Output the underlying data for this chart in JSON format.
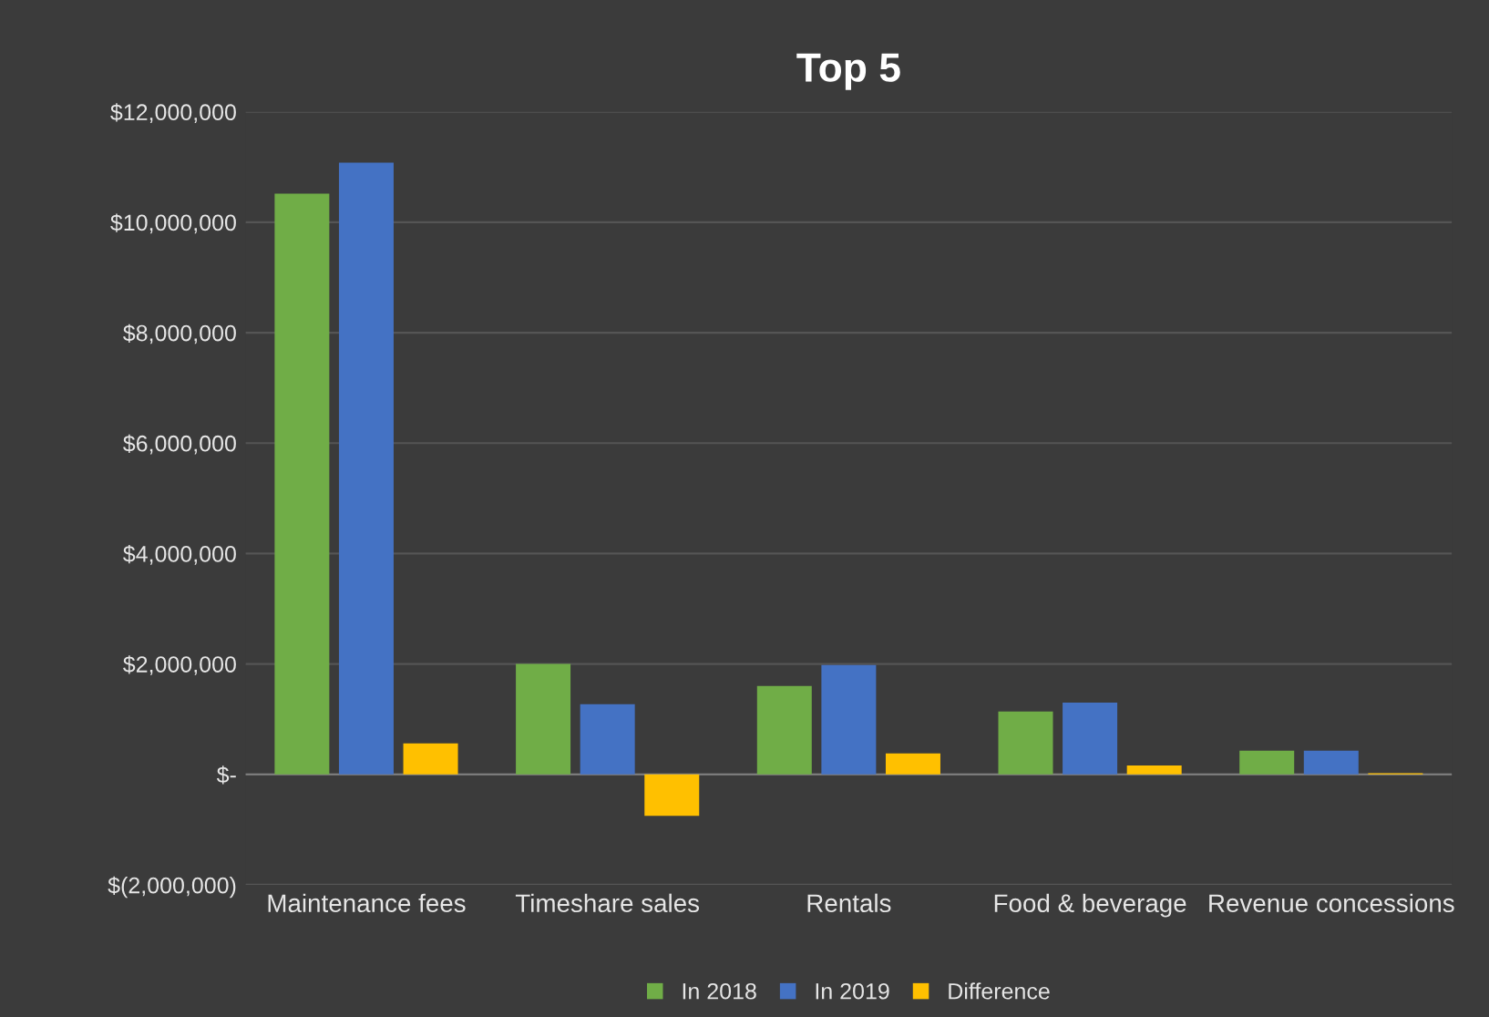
{
  "chart_data": {
    "type": "bar",
    "title": "Top 5",
    "categories": [
      "Maintenance fees",
      "Timeshare sales",
      "Rentals",
      "Food & beverage",
      "Revenue concessions"
    ],
    "series": [
      {
        "name": "In 2018",
        "color": "#70ad47",
        "values": [
          10520000,
          2000000,
          1600000,
          1140000,
          430000
        ]
      },
      {
        "name": "In 2019",
        "color": "#4472c4",
        "values": [
          11080000,
          1270000,
          1980000,
          1300000,
          430000
        ]
      },
      {
        "name": "Difference",
        "color": "#ffc000",
        "values": [
          560000,
          -750000,
          380000,
          160000,
          20000
        ]
      }
    ],
    "ylim": [
      -2000000,
      12000000
    ],
    "yticks": [
      {
        "value": -2000000,
        "label": "$(2,000,000)"
      },
      {
        "value": 0,
        "label": "$-"
      },
      {
        "value": 2000000,
        "label": "$2,000,000"
      },
      {
        "value": 4000000,
        "label": "$4,000,000"
      },
      {
        "value": 6000000,
        "label": "$6,000,000"
      },
      {
        "value": 8000000,
        "label": "$8,000,000"
      },
      {
        "value": 10000000,
        "label": "$10,000,000"
      },
      {
        "value": 12000000,
        "label": "$12,000,000"
      }
    ],
    "grid": "y",
    "legend": "bottom"
  }
}
